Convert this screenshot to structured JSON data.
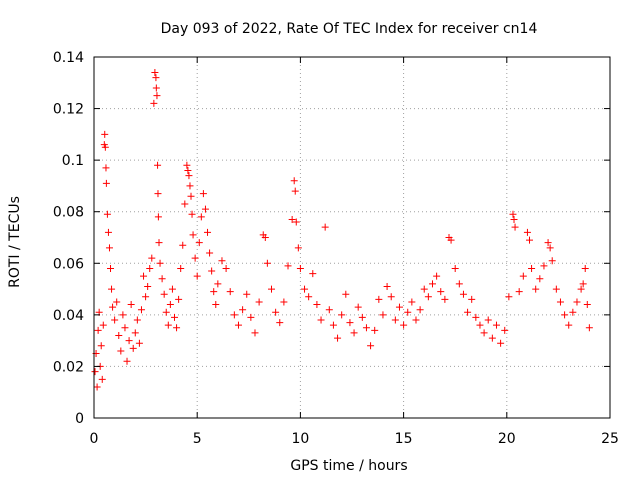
{
  "chart_data": {
    "type": "scatter",
    "title": "Day 093 of 2022, Rate Of TEC Index for receiver cn14",
    "xlabel": "GPS time / hours",
    "ylabel": "ROTI / TECUs",
    "xlim": [
      0,
      25
    ],
    "ylim": [
      0,
      0.14
    ],
    "xticks": [
      0,
      5,
      10,
      15,
      20,
      25
    ],
    "xtick_labels": [
      "0",
      "5",
      "10",
      "15",
      "20",
      "25"
    ],
    "yticks": [
      0,
      0.02,
      0.04,
      0.06,
      0.08,
      0.1,
      0.12,
      0.14
    ],
    "ytick_labels": [
      "0",
      "0.02",
      "0.04",
      "0.06",
      "0.08",
      "0.1",
      "0.12",
      "0.14"
    ],
    "grid": true,
    "marker": "+",
    "color": "#ff0000",
    "series": [
      {
        "name": "ROTI",
        "points": [
          [
            0.05,
            0.018
          ],
          [
            0.1,
            0.025
          ],
          [
            0.15,
            0.012
          ],
          [
            0.2,
            0.034
          ],
          [
            0.25,
            0.041
          ],
          [
            0.3,
            0.02
          ],
          [
            0.35,
            0.028
          ],
          [
            0.4,
            0.015
          ],
          [
            0.45,
            0.036
          ],
          [
            0.5,
            0.106
          ],
          [
            0.52,
            0.11
          ],
          [
            0.55,
            0.105
          ],
          [
            0.58,
            0.097
          ],
          [
            0.6,
            0.091
          ],
          [
            0.65,
            0.079
          ],
          [
            0.7,
            0.072
          ],
          [
            0.75,
            0.066
          ],
          [
            0.8,
            0.058
          ],
          [
            0.85,
            0.05
          ],
          [
            0.9,
            0.043
          ],
          [
            1.0,
            0.038
          ],
          [
            1.1,
            0.045
          ],
          [
            1.2,
            0.032
          ],
          [
            1.3,
            0.026
          ],
          [
            1.4,
            0.04
          ],
          [
            1.5,
            0.035
          ],
          [
            1.6,
            0.022
          ],
          [
            1.7,
            0.03
          ],
          [
            1.8,
            0.044
          ],
          [
            1.9,
            0.027
          ],
          [
            2.0,
            0.033
          ],
          [
            2.1,
            0.038
          ],
          [
            2.2,
            0.029
          ],
          [
            2.3,
            0.042
          ],
          [
            2.4,
            0.055
          ],
          [
            2.5,
            0.047
          ],
          [
            2.6,
            0.051
          ],
          [
            2.7,
            0.058
          ],
          [
            2.8,
            0.062
          ],
          [
            2.9,
            0.122
          ],
          [
            2.95,
            0.134
          ],
          [
            3.0,
            0.132
          ],
          [
            3.02,
            0.128
          ],
          [
            3.05,
            0.125
          ],
          [
            3.08,
            0.098
          ],
          [
            3.1,
            0.087
          ],
          [
            3.12,
            0.078
          ],
          [
            3.15,
            0.068
          ],
          [
            3.2,
            0.06
          ],
          [
            3.3,
            0.054
          ],
          [
            3.4,
            0.048
          ],
          [
            3.5,
            0.041
          ],
          [
            3.6,
            0.036
          ],
          [
            3.7,
            0.044
          ],
          [
            3.8,
            0.05
          ],
          [
            3.9,
            0.039
          ],
          [
            4.0,
            0.035
          ],
          [
            4.1,
            0.046
          ],
          [
            4.2,
            0.058
          ],
          [
            4.3,
            0.067
          ],
          [
            4.4,
            0.083
          ],
          [
            4.5,
            0.098
          ],
          [
            4.55,
            0.096
          ],
          [
            4.6,
            0.094
          ],
          [
            4.65,
            0.09
          ],
          [
            4.7,
            0.086
          ],
          [
            4.75,
            0.079
          ],
          [
            4.8,
            0.071
          ],
          [
            4.9,
            0.062
          ],
          [
            5.0,
            0.055
          ],
          [
            5.1,
            0.068
          ],
          [
            5.2,
            0.078
          ],
          [
            5.3,
            0.087
          ],
          [
            5.4,
            0.081
          ],
          [
            5.5,
            0.072
          ],
          [
            5.6,
            0.064
          ],
          [
            5.7,
            0.057
          ],
          [
            5.8,
            0.049
          ],
          [
            5.9,
            0.044
          ],
          [
            6.0,
            0.052
          ],
          [
            6.2,
            0.061
          ],
          [
            6.4,
            0.058
          ],
          [
            6.6,
            0.049
          ],
          [
            6.8,
            0.04
          ],
          [
            7.0,
            0.036
          ],
          [
            7.2,
            0.042
          ],
          [
            7.4,
            0.048
          ],
          [
            7.6,
            0.039
          ],
          [
            7.8,
            0.033
          ],
          [
            8.0,
            0.045
          ],
          [
            8.2,
            0.071
          ],
          [
            8.3,
            0.07
          ],
          [
            8.4,
            0.06
          ],
          [
            8.6,
            0.05
          ],
          [
            8.8,
            0.041
          ],
          [
            9.0,
            0.037
          ],
          [
            9.2,
            0.045
          ],
          [
            9.4,
            0.059
          ],
          [
            9.6,
            0.077
          ],
          [
            9.7,
            0.092
          ],
          [
            9.75,
            0.088
          ],
          [
            9.8,
            0.076
          ],
          [
            9.9,
            0.066
          ],
          [
            10.0,
            0.058
          ],
          [
            10.2,
            0.05
          ],
          [
            10.4,
            0.047
          ],
          [
            10.6,
            0.056
          ],
          [
            10.8,
            0.044
          ],
          [
            11.0,
            0.038
          ],
          [
            11.2,
            0.074
          ],
          [
            11.4,
            0.042
          ],
          [
            11.6,
            0.036
          ],
          [
            11.8,
            0.031
          ],
          [
            12.0,
            0.04
          ],
          [
            12.2,
            0.048
          ],
          [
            12.4,
            0.037
          ],
          [
            12.6,
            0.033
          ],
          [
            12.8,
            0.043
          ],
          [
            13.0,
            0.039
          ],
          [
            13.2,
            0.035
          ],
          [
            13.4,
            0.028
          ],
          [
            13.6,
            0.034
          ],
          [
            13.8,
            0.046
          ],
          [
            14.0,
            0.04
          ],
          [
            14.2,
            0.051
          ],
          [
            14.4,
            0.047
          ],
          [
            14.6,
            0.038
          ],
          [
            14.8,
            0.043
          ],
          [
            15.0,
            0.036
          ],
          [
            15.2,
            0.041
          ],
          [
            15.4,
            0.045
          ],
          [
            15.6,
            0.038
          ],
          [
            15.8,
            0.042
          ],
          [
            16.0,
            0.05
          ],
          [
            16.2,
            0.047
          ],
          [
            16.4,
            0.052
          ],
          [
            16.6,
            0.055
          ],
          [
            16.8,
            0.049
          ],
          [
            17.0,
            0.046
          ],
          [
            17.2,
            0.07
          ],
          [
            17.3,
            0.069
          ],
          [
            17.5,
            0.058
          ],
          [
            17.7,
            0.052
          ],
          [
            17.9,
            0.048
          ],
          [
            18.1,
            0.041
          ],
          [
            18.3,
            0.046
          ],
          [
            18.5,
            0.039
          ],
          [
            18.7,
            0.036
          ],
          [
            18.9,
            0.033
          ],
          [
            19.1,
            0.038
          ],
          [
            19.3,
            0.031
          ],
          [
            19.5,
            0.036
          ],
          [
            19.7,
            0.029
          ],
          [
            19.9,
            0.034
          ],
          [
            20.1,
            0.047
          ],
          [
            20.3,
            0.079
          ],
          [
            20.35,
            0.077
          ],
          [
            20.4,
            0.074
          ],
          [
            20.6,
            0.049
          ],
          [
            20.8,
            0.055
          ],
          [
            21.0,
            0.072
          ],
          [
            21.1,
            0.069
          ],
          [
            21.2,
            0.058
          ],
          [
            21.4,
            0.05
          ],
          [
            21.6,
            0.054
          ],
          [
            21.8,
            0.059
          ],
          [
            22.0,
            0.068
          ],
          [
            22.1,
            0.066
          ],
          [
            22.2,
            0.061
          ],
          [
            22.4,
            0.05
          ],
          [
            22.6,
            0.045
          ],
          [
            22.8,
            0.04
          ],
          [
            23.0,
            0.036
          ],
          [
            23.2,
            0.041
          ],
          [
            23.4,
            0.045
          ],
          [
            23.6,
            0.05
          ],
          [
            23.7,
            0.052
          ],
          [
            23.8,
            0.058
          ],
          [
            23.9,
            0.044
          ],
          [
            24.0,
            0.035
          ]
        ]
      }
    ]
  }
}
